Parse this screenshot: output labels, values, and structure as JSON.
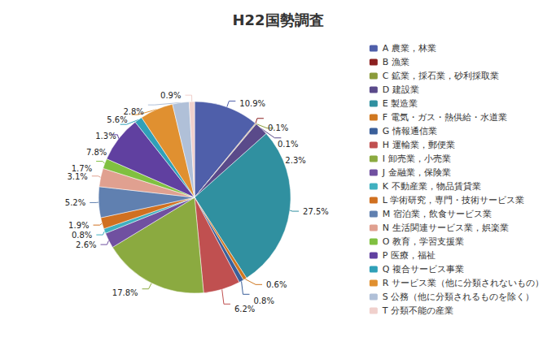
{
  "chart_data": {
    "type": "pie",
    "title": "H22国勢調査",
    "categories": [
      "A 農業，林業",
      "B 漁業",
      "C 鉱業，採石業，砂利採取業",
      "D 建設業",
      "E 製造業",
      "F 電気・ガス・熱供給・水道業",
      "G 情報通信業",
      "H 運輸業，郵便業",
      "I 卸売業，小売業",
      "J 金融業，保険業",
      "K 不動産業，物品賃貸業",
      "L 学術研究，専門・技術サービス業",
      "M 宿泊業，飲食サービス業",
      "N 生活関連サービス業，娯楽業",
      "O 教育，学習支援業",
      "P 医療，福祉",
      "Q 複合サービス事業",
      "R サービス業（他に分類されないもの）",
      "S 公務（他に分類されるものを除く）",
      "T 分類不能の産業"
    ],
    "values": [
      10.9,
      0.1,
      0.1,
      2.3,
      27.5,
      0.6,
      0.8,
      6.2,
      17.8,
      2.6,
      0.8,
      1.9,
      5.2,
      3.1,
      1.7,
      7.8,
      1.3,
      5.6,
      2.8,
      0.9
    ],
    "value_labels": [
      "10.9%",
      "0.1%",
      "0.1%",
      "2.3%",
      "27.5%",
      "0.6%",
      "0.8%",
      "6.2%",
      "17.8%",
      "2.6%",
      "0.8%",
      "1.9%",
      "5.2%",
      "3.1%",
      "1.7%",
      "7.8%",
      "1.3%",
      "5.6%",
      "2.8%",
      "0.9%"
    ],
    "colors": [
      "#4F5FAA",
      "#8B2020",
      "#8B9B3A",
      "#5A4A8A",
      "#3090A0",
      "#D07820",
      "#3A5F9A",
      "#C05050",
      "#8BAA40",
      "#7050A0",
      "#40B0C0",
      "#D07020",
      "#6080B0",
      "#E0A090",
      "#80C040",
      "#6040A0",
      "#30A0B8",
      "#E09030",
      "#B0C0D8",
      "#F0D0CC"
    ],
    "data_labels": true,
    "legend": "right"
  }
}
